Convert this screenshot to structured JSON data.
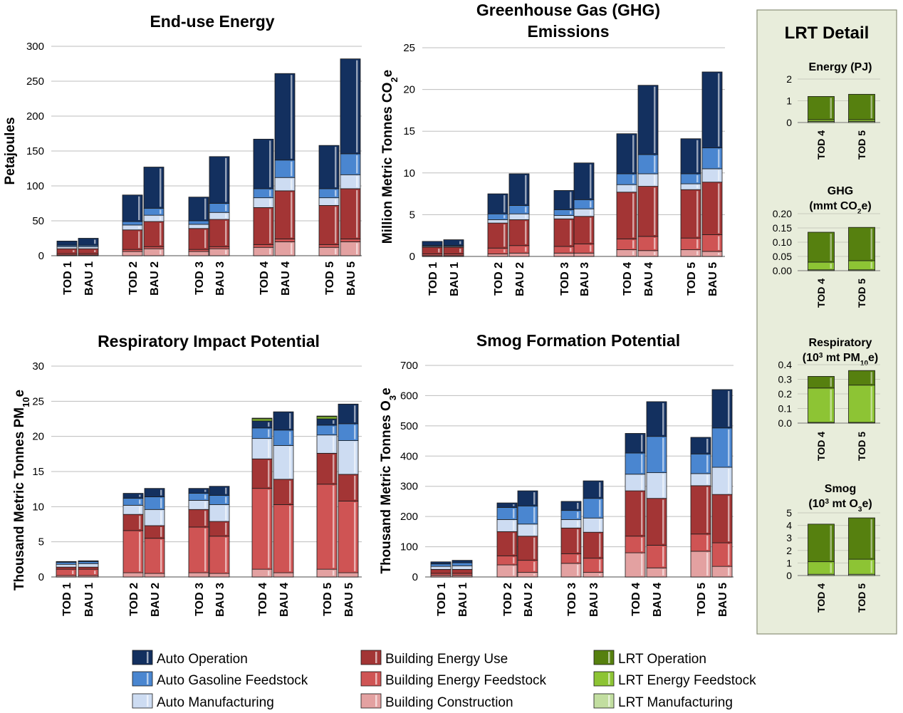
{
  "legend": [
    {
      "key": "auto_op",
      "label": "Auto Operation",
      "color": "#13305f"
    },
    {
      "key": "auto_gas",
      "label": "Auto Gasoline Feedstock",
      "color": "#4a86d0"
    },
    {
      "key": "auto_mfg",
      "label": "Auto Manufacturing",
      "color": "#cddcf2"
    },
    {
      "key": "bldg_use",
      "label": "Building Energy Use",
      "color": "#a33535"
    },
    {
      "key": "bldg_feed",
      "label": "Building Energy Feedstock",
      "color": "#cf5454"
    },
    {
      "key": "bldg_con",
      "label": "Building Construction",
      "color": "#e3a1a1"
    },
    {
      "key": "lrt_op",
      "label": "LRT Operation",
      "color": "#56800f"
    },
    {
      "key": "lrt_feed",
      "label": "LRT Energy Feedstock",
      "color": "#8dc434"
    },
    {
      "key": "lrt_mfg",
      "label": "LRT Manufacturing",
      "color": "#c2dea0"
    }
  ],
  "lrt_panel_title": "LRT Detail",
  "chart_data": [
    {
      "id": "energy",
      "type": "bar",
      "stacked": true,
      "title": "End-use Energy",
      "ylabel": "Petajoules",
      "ylim": [
        0,
        300
      ],
      "yticks": [
        0,
        50,
        100,
        150,
        200,
        250,
        300
      ],
      "ytick_labels": [
        "0",
        "50",
        "100",
        "150",
        "200",
        "250",
        "300"
      ],
      "categories": [
        "TOD 1",
        "BAU 1",
        "TOD 2",
        "BAU 2",
        "TOD 3",
        "BAU 3",
        "TOD 4",
        "BAU 4",
        "TOD 5",
        "BAU 5"
      ],
      "series": [
        {
          "key": "bldg_con",
          "values": [
            1,
            1,
            6,
            10,
            6,
            10,
            12,
            20,
            12,
            20
          ]
        },
        {
          "key": "bldg_feed",
          "values": [
            2,
            2,
            3,
            3,
            3,
            3,
            4,
            4,
            4,
            4
          ]
        },
        {
          "key": "bldg_use",
          "values": [
            7,
            7,
            28,
            36,
            30,
            39,
            53,
            69,
            56,
            72
          ]
        },
        {
          "key": "auto_mfg",
          "values": [
            3,
            3,
            7,
            9,
            6,
            10,
            14,
            19,
            11,
            20
          ]
        },
        {
          "key": "auto_gas",
          "values": [
            2,
            2,
            5,
            10,
            5,
            13,
            13,
            25,
            13,
            30
          ]
        },
        {
          "key": "auto_op",
          "values": [
            6,
            10,
            38,
            59,
            34,
            67,
            71,
            124,
            62,
            136
          ]
        }
      ]
    },
    {
      "id": "ghg",
      "type": "bar",
      "stacked": true,
      "title": "Greenhouse Gas (GHG)",
      "title2": "Emissions",
      "ylabel": "Million Metric Tonnes CO",
      "ylabel_sub": "2",
      "ylabel_end": "e",
      "ylim": [
        0,
        25
      ],
      "yticks": [
        0,
        5,
        10,
        15,
        20,
        25
      ],
      "ytick_labels": [
        "0",
        "5",
        "10",
        "15",
        "20",
        "25"
      ],
      "categories": [
        "TOD 1",
        "BAU 1",
        "TOD 2",
        "BAU 2",
        "TOD 3",
        "BAU 3",
        "TOD 4",
        "BAU 4",
        "TOD 5",
        "BAU 5"
      ],
      "series": [
        {
          "key": "bldg_con",
          "values": [
            0.1,
            0.1,
            0.3,
            0.4,
            0.4,
            0.4,
            0.8,
            0.7,
            0.8,
            0.6
          ]
        },
        {
          "key": "bldg_feed",
          "values": [
            0.2,
            0.2,
            0.7,
            0.9,
            0.8,
            1.1,
            1.3,
            1.7,
            1.4,
            2.0
          ]
        },
        {
          "key": "bldg_use",
          "values": [
            0.8,
            0.8,
            3.0,
            3.1,
            3.3,
            3.3,
            5.6,
            6.0,
            5.8,
            6.3
          ]
        },
        {
          "key": "auto_mfg",
          "values": [
            0.1,
            0.1,
            0.4,
            0.7,
            0.4,
            0.9,
            0.9,
            1.5,
            0.7,
            1.6
          ]
        },
        {
          "key": "auto_gas",
          "values": [
            0.1,
            0.1,
            0.7,
            1.0,
            0.7,
            1.1,
            1.3,
            2.3,
            1.2,
            2.5
          ]
        },
        {
          "key": "auto_op",
          "values": [
            0.5,
            0.7,
            2.4,
            3.8,
            2.3,
            4.4,
            4.8,
            8.3,
            4.2,
            9.1
          ]
        }
      ]
    },
    {
      "id": "resp",
      "type": "bar",
      "stacked": true,
      "title": "Respiratory Impact Potential",
      "ylabel": "Thousand Metric Tonnes PM",
      "ylabel_sub": "10",
      "ylabel_end": "e",
      "ylim": [
        0,
        30
      ],
      "yticks": [
        0,
        5,
        10,
        15,
        20,
        25,
        30
      ],
      "ytick_labels": [
        "0",
        "5",
        "10",
        "15",
        "20",
        "25",
        "30"
      ],
      "categories": [
        "TOD 1",
        "BAU 1",
        "TOD 2",
        "BAU 2",
        "TOD 3",
        "BAU 3",
        "TOD 4",
        "BAU 4",
        "TOD 5",
        "BAU 5"
      ],
      "series": [
        {
          "key": "bldg_con",
          "values": [
            0.2,
            0.2,
            0.6,
            0.5,
            0.6,
            0.5,
            1.1,
            0.6,
            1.1,
            0.6
          ]
        },
        {
          "key": "bldg_feed",
          "values": [
            0.9,
            0.9,
            6.0,
            5.0,
            6.5,
            5.3,
            11.5,
            9.7,
            12.1,
            10.2
          ]
        },
        {
          "key": "bldg_use",
          "values": [
            0.3,
            0.3,
            2.3,
            1.8,
            2.5,
            2.1,
            4.2,
            3.6,
            4.4,
            3.8
          ]
        },
        {
          "key": "auto_mfg",
          "values": [
            0.4,
            0.5,
            1.3,
            2.3,
            1.3,
            2.4,
            2.9,
            4.8,
            2.6,
            4.8
          ]
        },
        {
          "key": "auto_gas",
          "values": [
            0.3,
            0.3,
            1.0,
            1.8,
            1.0,
            1.3,
            1.5,
            2.2,
            1.4,
            2.4
          ]
        },
        {
          "key": "auto_op",
          "values": [
            0.1,
            0.1,
            0.7,
            1.2,
            0.7,
            1.3,
            1.0,
            2.6,
            0.9,
            2.8
          ]
        },
        {
          "key": "lrt_feed",
          "values": [
            0,
            0,
            0,
            0,
            0,
            0,
            0.3,
            0,
            0.3,
            0
          ]
        },
        {
          "key": "lrt_op",
          "values": [
            0,
            0,
            0,
            0,
            0,
            0,
            0.1,
            0,
            0.1,
            0
          ]
        }
      ]
    },
    {
      "id": "smog",
      "type": "bar",
      "stacked": true,
      "title": "Smog Formation Potential",
      "ylabel": "Thousand Metric Tonnes O",
      "ylabel_sub": "3",
      "ylabel_end": "e",
      "ylim": [
        0,
        700
      ],
      "yticks": [
        0,
        100,
        200,
        300,
        400,
        500,
        600,
        700
      ],
      "ytick_labels": [
        "0",
        "100",
        "200",
        "300",
        "400",
        "500",
        "600",
        "700"
      ],
      "categories": [
        "TOD 1",
        "BAU 1",
        "TOD 2",
        "BAU 2",
        "TOD 3",
        "BAU 3",
        "TOD 4",
        "BAU 4",
        "TOD 5",
        "BAU 5"
      ],
      "series": [
        {
          "key": "bldg_con",
          "values": [
            5,
            5,
            40,
            15,
            45,
            15,
            80,
            30,
            85,
            35
          ]
        },
        {
          "key": "bldg_feed",
          "values": [
            7,
            7,
            30,
            40,
            32,
            47,
            55,
            75,
            57,
            78
          ]
        },
        {
          "key": "bldg_use",
          "values": [
            13,
            13,
            80,
            80,
            85,
            86,
            150,
            155,
            160,
            160
          ]
        },
        {
          "key": "auto_mfg",
          "values": [
            10,
            12,
            40,
            40,
            28,
            47,
            55,
            85,
            40,
            90
          ]
        },
        {
          "key": "auto_gas",
          "values": [
            8,
            10,
            40,
            60,
            30,
            65,
            70,
            120,
            65,
            130
          ]
        },
        {
          "key": "auto_op",
          "values": [
            7,
            8,
            15,
            50,
            30,
            58,
            65,
            115,
            55,
            127
          ]
        }
      ]
    }
  ],
  "lrt_charts": [
    {
      "id": "lrt_energy",
      "title": "Energy (PJ)",
      "ylim": [
        0,
        2
      ],
      "yticks": [
        0,
        1,
        2
      ],
      "ytick_labels": [
        "0",
        "1",
        "2"
      ],
      "categories": [
        "TOD 4",
        "TOD 5"
      ],
      "series": [
        {
          "key": "lrt_mfg",
          "values": [
            0.05,
            0.05
          ]
        },
        {
          "key": "lrt_feed",
          "values": [
            0.08,
            0.08
          ]
        },
        {
          "key": "lrt_op",
          "values": [
            1.07,
            1.17
          ]
        }
      ]
    },
    {
      "id": "lrt_ghg",
      "title": "GHG",
      "title2": "(mmt CO",
      "title2_sub": "2",
      "title2_end": "e)",
      "ylim": [
        0,
        0.2
      ],
      "yticks": [
        0,
        0.05,
        0.1,
        0.15,
        0.2
      ],
      "ytick_labels": [
        "0.00",
        "0.05",
        "0.10",
        "0.15",
        "0.20"
      ],
      "categories": [
        "TOD 4",
        "TOD 5"
      ],
      "series": [
        {
          "key": "lrt_mfg",
          "values": [
            0.003,
            0.003
          ]
        },
        {
          "key": "lrt_feed",
          "values": [
            0.027,
            0.032
          ]
        },
        {
          "key": "lrt_op",
          "values": [
            0.105,
            0.117
          ]
        }
      ]
    },
    {
      "id": "lrt_resp",
      "title": "Respiratory",
      "title2": "(10",
      "title2_sup": "3",
      "title2_mid": " mt PM",
      "title2_sub": "10",
      "title2_end": "e)",
      "ylim": [
        0,
        0.4
      ],
      "yticks": [
        0,
        0.1,
        0.2,
        0.3,
        0.4
      ],
      "ytick_labels": [
        "0.0",
        "0.1",
        "0.2",
        "0.3",
        "0.4"
      ],
      "categories": [
        "TOD 4",
        "TOD 5"
      ],
      "series": [
        {
          "key": "lrt_mfg",
          "values": [
            0.005,
            0.005
          ]
        },
        {
          "key": "lrt_feed",
          "values": [
            0.235,
            0.255
          ]
        },
        {
          "key": "lrt_op",
          "values": [
            0.08,
            0.1
          ]
        }
      ]
    },
    {
      "id": "lrt_smog",
      "title": "Smog",
      "title2": "(10",
      "title2_sup": "3",
      "title2_mid": " mt O",
      "title2_sub": "3",
      "title2_end": "e)",
      "ylim": [
        0,
        5
      ],
      "yticks": [
        0,
        1,
        2,
        3,
        4,
        5
      ],
      "ytick_labels": [
        "0",
        "1",
        "2",
        "3",
        "4",
        "5"
      ],
      "categories": [
        "TOD 4",
        "TOD 5"
      ],
      "series": [
        {
          "key": "lrt_mfg",
          "values": [
            0.1,
            0.1
          ]
        },
        {
          "key": "lrt_feed",
          "values": [
            1.0,
            1.2
          ]
        },
        {
          "key": "lrt_op",
          "values": [
            3.0,
            3.3
          ]
        }
      ]
    }
  ]
}
